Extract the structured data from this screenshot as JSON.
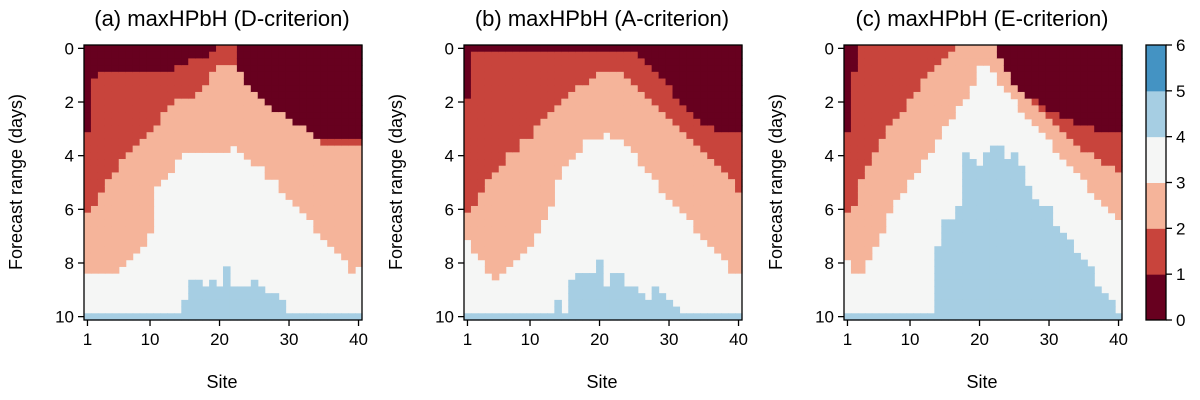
{
  "palette": [
    "#67001f",
    "#c8443c",
    "#f5b49a",
    "#f5f6f5",
    "#a6cee3",
    "#4493c3",
    "#08519c"
  ],
  "colorbar": {
    "ticks": [
      "0",
      "1",
      "2",
      "3",
      "4",
      "5",
      "6"
    ],
    "min": 0,
    "max": 6
  },
  "chart_data": [
    {
      "type": "heatmap",
      "title": "(a) maxHPbH (D-criterion)",
      "xlabel": "Site",
      "ylabel": "Forecast range (days)",
      "xticks": [
        "1",
        "10",
        "20",
        "30",
        "40"
      ],
      "yticks": [
        "0",
        "2",
        "4",
        "6",
        "8",
        "10"
      ],
      "x_range": [
        1,
        40
      ],
      "y_range": [
        0,
        10
      ],
      "n_sites": 40,
      "n_ranges": 41,
      "boundaries": {
        "b01": [
          3.1,
          1.2,
          0.8,
          0.8,
          0.8,
          0.8,
          0.8,
          0.8,
          0.8,
          0.8,
          0.8,
          0.8,
          0.8,
          0.7,
          0.6,
          0.5,
          0.4,
          0.3,
          0.1,
          0.0,
          0.0,
          0.0,
          1.0,
          1.5,
          1.8,
          2.1,
          2.3,
          2.5,
          2.7,
          2.8,
          3.0,
          3.1,
          3.2,
          3.3,
          3.4,
          3.4,
          3.4,
          3.4,
          3.4,
          3.4
        ],
        "b12": [
          6.1,
          5.9,
          5.4,
          4.9,
          4.6,
          4.2,
          3.9,
          3.7,
          3.5,
          3.2,
          2.9,
          2.5,
          2.2,
          2.0,
          1.9,
          1.8,
          1.6,
          1.4,
          1.0,
          0.6,
          0.6,
          0.6,
          1.0,
          1.3,
          1.6,
          1.9,
          2.1,
          2.3,
          2.5,
          2.7,
          2.9,
          3.0,
          3.2,
          3.4,
          3.6,
          3.6,
          3.6,
          3.6,
          3.6,
          3.6
        ],
        "b23": [
          8.4,
          8.4,
          8.4,
          8.4,
          8.4,
          8.2,
          7.9,
          7.6,
          7.3,
          7.0,
          5.2,
          5.0,
          4.6,
          4.2,
          4.0,
          3.9,
          3.9,
          3.8,
          3.8,
          3.8,
          4.0,
          3.7,
          4.0,
          4.1,
          4.3,
          4.5,
          4.8,
          5.0,
          5.3,
          5.6,
          5.9,
          6.2,
          6.5,
          6.8,
          7.1,
          7.4,
          7.7,
          8.0,
          8.3,
          8.1
        ],
        "b34": [
          10,
          10,
          10,
          10,
          10,
          10,
          10,
          10,
          10,
          10,
          10,
          10,
          10,
          9.9,
          9.3,
          8.7,
          8.7,
          8.9,
          8.7,
          8.9,
          8.2,
          8.9,
          8.9,
          8.9,
          8.6,
          8.9,
          9.2,
          9.2,
          9.4,
          9.9,
          10,
          10,
          10,
          10,
          10,
          10,
          10,
          10,
          10,
          10
        ]
      }
    },
    {
      "type": "heatmap",
      "title": "(b) maxHPbH (A-criterion)",
      "xlabel": "Site",
      "ylabel": "Forecast range (days)",
      "xticks": [
        "1",
        "10",
        "20",
        "30",
        "40"
      ],
      "yticks": [
        "0",
        "2",
        "4",
        "6",
        "8",
        "10"
      ],
      "x_range": [
        1,
        40
      ],
      "y_range": [
        0,
        10
      ],
      "n_sites": 40,
      "n_ranges": 41,
      "boundaries": {
        "b01": [
          2.0,
          0.2,
          0.2,
          0.2,
          0.2,
          0.2,
          0.2,
          0.2,
          0.2,
          0.2,
          0.2,
          0.2,
          0.2,
          0.2,
          0.2,
          0.2,
          0.2,
          0.2,
          0.2,
          0.2,
          0.2,
          0.2,
          0.2,
          0.2,
          0.2,
          0.3,
          0.6,
          0.9,
          1.2,
          1.5,
          1.8,
          2.1,
          2.4,
          2.6,
          2.8,
          3.0,
          3.1,
          3.1,
          3.1,
          3.1
        ],
        "b12": [
          6.1,
          5.8,
          5.3,
          4.9,
          4.6,
          4.3,
          4.0,
          3.8,
          3.5,
          3.3,
          2.9,
          2.6,
          2.4,
          2.1,
          1.9,
          1.7,
          1.5,
          1.3,
          1.1,
          0.9,
          0.8,
          0.8,
          0.9,
          1.1,
          1.4,
          1.7,
          1.9,
          2.2,
          2.4,
          2.6,
          2.9,
          3.1,
          3.4,
          3.6,
          3.8,
          4.1,
          4.3,
          4.7,
          5.0,
          5.4
        ],
        "b23": [
          7.2,
          7.6,
          8.0,
          8.3,
          8.6,
          8.4,
          8.2,
          8.0,
          7.7,
          7.3,
          6.9,
          6.4,
          5.9,
          5.0,
          4.4,
          4.1,
          3.9,
          3.5,
          3.4,
          3.4,
          3.1,
          3.5,
          3.4,
          3.6,
          4.0,
          4.3,
          4.7,
          5.0,
          5.3,
          5.6,
          5.9,
          6.2,
          6.5,
          6.8,
          7.1,
          7.4,
          7.7,
          8.0,
          8.3,
          8.4
        ],
        "b34": [
          10,
          10,
          10,
          10,
          10,
          10,
          10,
          10,
          10,
          10,
          10,
          10,
          10,
          9.4,
          10,
          8.6,
          8.3,
          8.3,
          8.3,
          8.0,
          8.8,
          8.5,
          8.3,
          8.8,
          9.0,
          9.2,
          9.4,
          9.0,
          9.2,
          9.4,
          9.6,
          9.8,
          10,
          10,
          10,
          10,
          10,
          10,
          10,
          10
        ]
      }
    },
    {
      "type": "heatmap",
      "title": "(c) maxHPbH (E-criterion)",
      "xlabel": "Site",
      "ylabel": "Forecast range (days)",
      "xticks": [
        "1",
        "10",
        "20",
        "30",
        "40"
      ],
      "yticks": [
        "0",
        "2",
        "4",
        "6",
        "8",
        "10"
      ],
      "x_range": [
        1,
        40
      ],
      "y_range": [
        0,
        10
      ],
      "n_sites": 40,
      "n_ranges": 41,
      "boundaries": {
        "b01": [
          3.1,
          0.9,
          0.0,
          0.0,
          0.0,
          0.0,
          0.0,
          0.0,
          0.0,
          0.0,
          0.0,
          0.0,
          0.0,
          0.0,
          0.0,
          0.0,
          0.0,
          0.0,
          0.0,
          0.0,
          0.0,
          0.0,
          0.7,
          1.2,
          1.5,
          1.7,
          1.9,
          2.0,
          2.2,
          2.3,
          2.5,
          2.6,
          2.7,
          2.8,
          2.9,
          3.0,
          3.1,
          3.1,
          3.1,
          3.1
        ],
        "b12": [
          6.1,
          5.8,
          5.0,
          4.3,
          3.8,
          3.4,
          3.0,
          2.6,
          2.3,
          1.9,
          1.6,
          1.2,
          0.9,
          0.6,
          0.4,
          0.2,
          0.0,
          0.0,
          0.0,
          0.0,
          0.0,
          0.0,
          0.5,
          1.0,
          1.4,
          1.7,
          1.9,
          2.2,
          2.5,
          2.7,
          3.0,
          3.2,
          3.4,
          3.6,
          3.8,
          4.0,
          4.1,
          4.3,
          4.4,
          4.6
        ],
        "b23": [
          7.8,
          8.4,
          8.4,
          8.0,
          7.4,
          6.8,
          6.2,
          5.7,
          5.3,
          4.9,
          4.6,
          4.2,
          3.8,
          3.4,
          3.0,
          2.6,
          2.2,
          1.8,
          1.4,
          0.6,
          0.6,
          1.0,
          1.4,
          1.7,
          2.0,
          2.3,
          2.6,
          2.9,
          3.2,
          3.5,
          3.8,
          4.1,
          4.4,
          4.7,
          5.0,
          5.3,
          5.6,
          5.9,
          6.2,
          6.5
        ],
        "b34": [
          10,
          10,
          10,
          10,
          10,
          10,
          10,
          10,
          10,
          10,
          10,
          10,
          10,
          7.4,
          6.5,
          6.3,
          6.0,
          4.0,
          4.2,
          4.3,
          4.0,
          3.6,
          3.6,
          4.2,
          4.0,
          4.4,
          5.2,
          5.7,
          6.0,
          6.0,
          6.6,
          7.0,
          7.2,
          7.6,
          7.8,
          8.2,
          8.8,
          9.2,
          9.4,
          10
        ]
      }
    }
  ]
}
